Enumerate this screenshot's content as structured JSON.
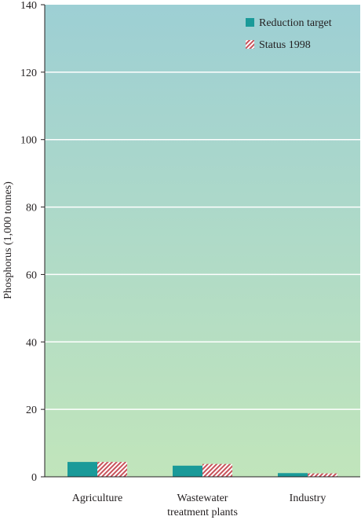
{
  "chart_data": {
    "type": "bar",
    "ylabel": "Phosphorus (1,000 tonnes)",
    "ylim": [
      0,
      140
    ],
    "yticks": [
      0,
      20,
      40,
      60,
      80,
      100,
      120,
      140
    ],
    "grid": true,
    "legend_position": "top-right",
    "categories": [
      {
        "label_lines": [
          "Agriculture"
        ]
      },
      {
        "label_lines": [
          "Wastewater",
          "treatment plants"
        ]
      },
      {
        "label_lines": [
          "Industry"
        ]
      }
    ],
    "series": [
      {
        "name": "Reduction target",
        "values": [
          4.4,
          3.3,
          1.1
        ],
        "color": "#1a9a99",
        "pattern": "solid"
      },
      {
        "name": "Status 1998",
        "values": [
          4.4,
          3.8,
          1.0
        ],
        "color": "#c8525a",
        "pattern": "hatched"
      }
    ],
    "colors": {
      "background_top": "#9dcfd4",
      "background_bottom": "#c1e5bb",
      "grid": "#ffffff",
      "text": "#231f20"
    }
  }
}
